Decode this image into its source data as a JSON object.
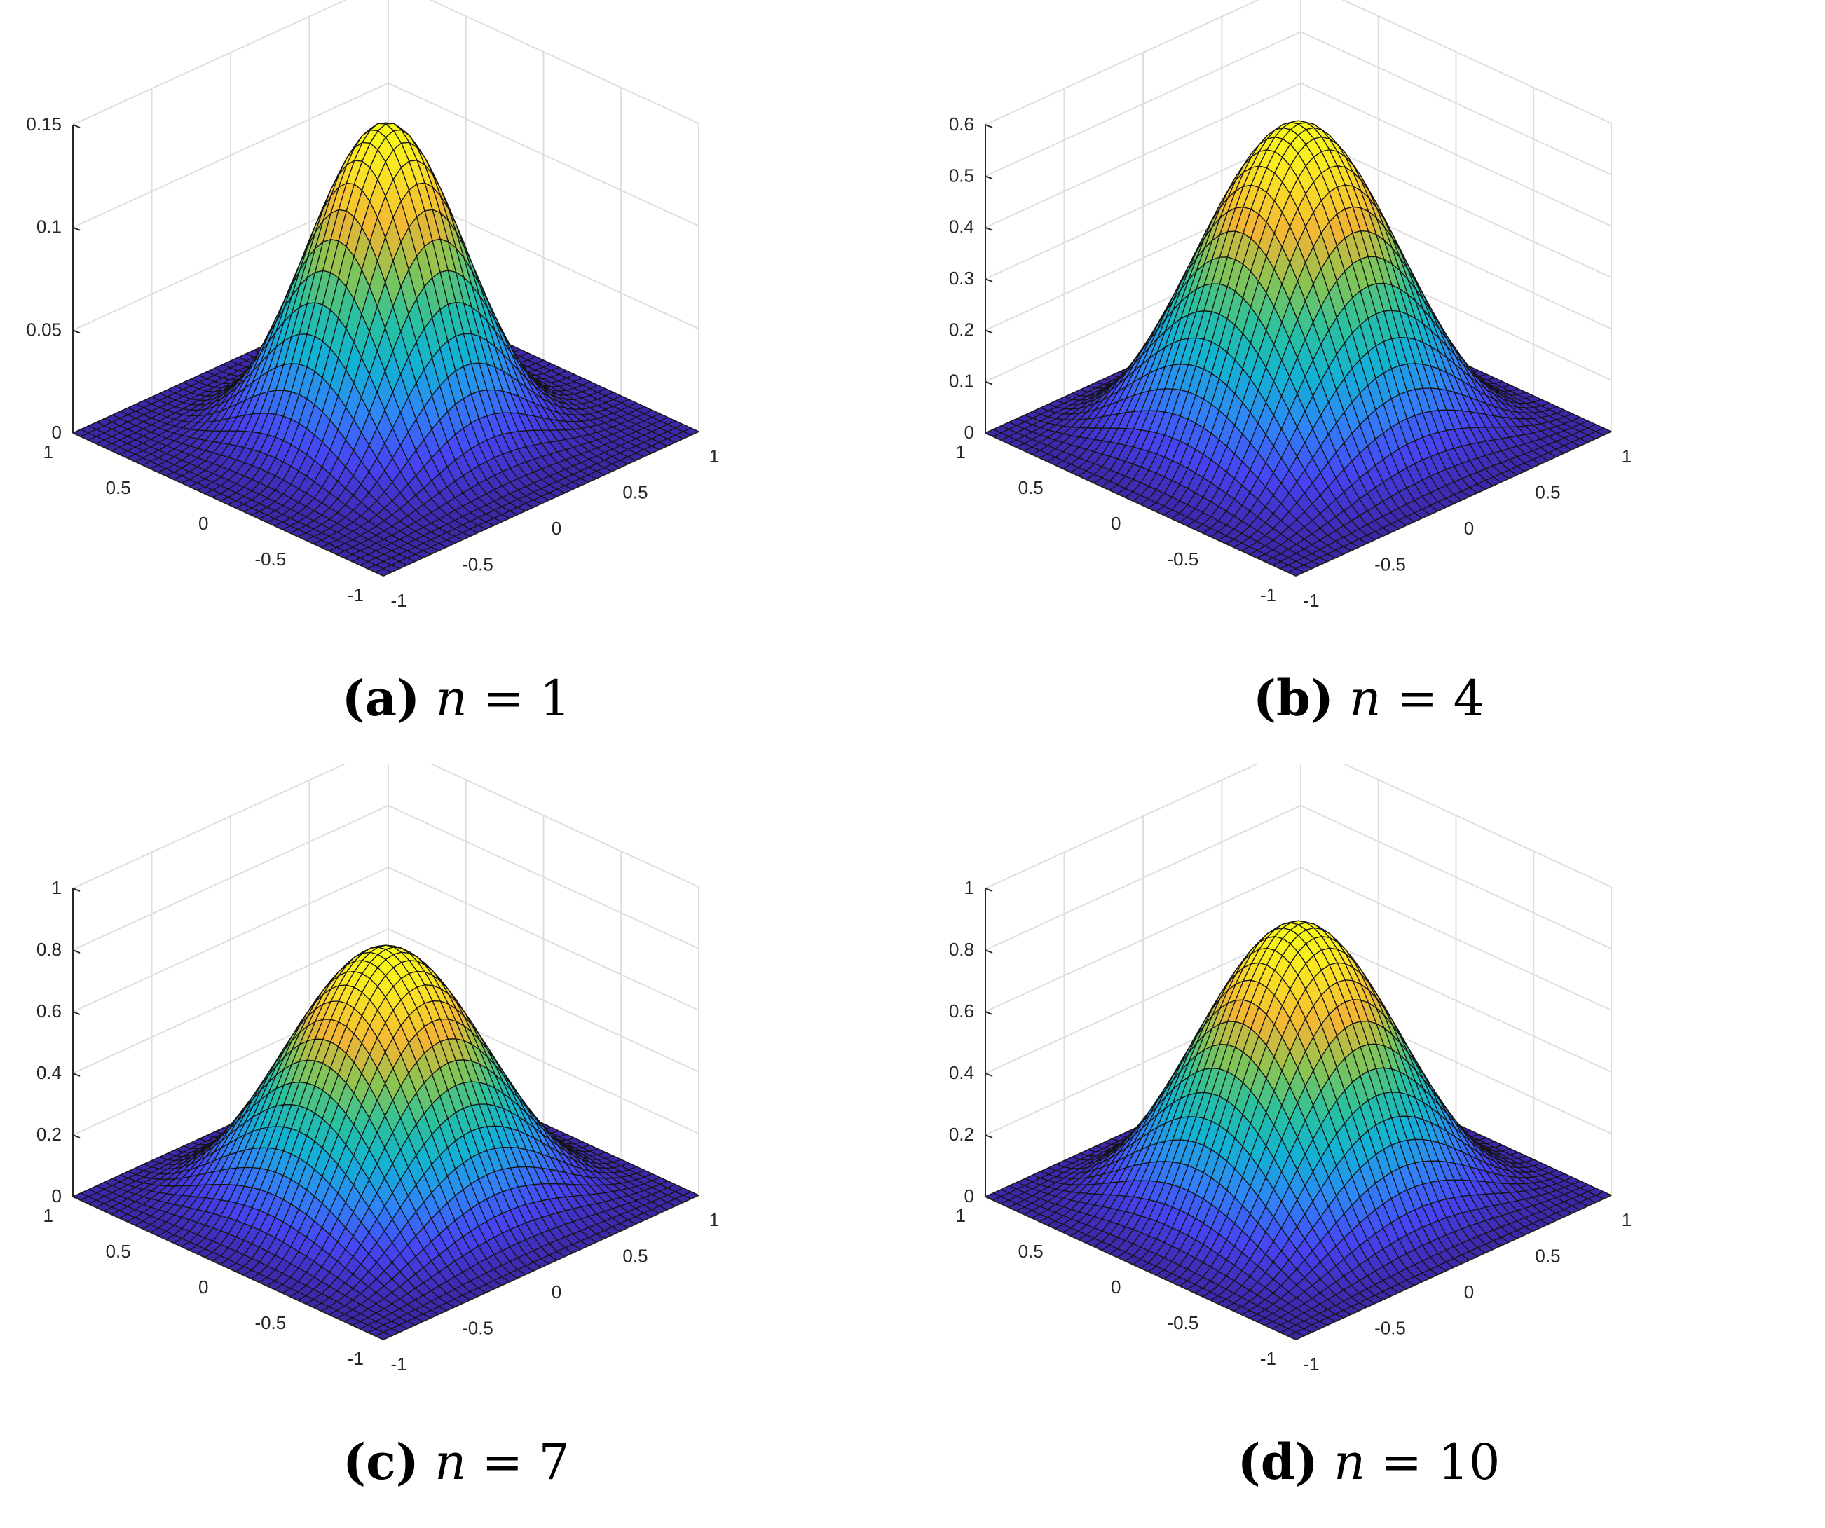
{
  "chart_data": [
    {
      "type": "surface",
      "caption": {
        "label": "(a)",
        "var": "n",
        "eq": "=",
        "value": "1"
      },
      "zlim": [
        0,
        0.15
      ],
      "zticks": [
        "0",
        "0.05",
        "0.1",
        "0.15"
      ],
      "xticks": [
        "-1",
        "-0.5",
        "0",
        "0.5",
        "1"
      ],
      "yticks": [
        "1",
        "0.5",
        "0",
        "-0.5",
        "-1"
      ],
      "peak": 0.15,
      "shape": 1.6,
      "grid": true,
      "colormap": [
        "#3e26a8",
        "#4745f5",
        "#2f86f7",
        "#12b2d3",
        "#2cc19d",
        "#8bc452",
        "#f1b535",
        "#fadf26",
        "#f9fb15"
      ]
    },
    {
      "type": "surface",
      "caption": {
        "label": "(b)",
        "var": "n",
        "eq": "=",
        "value": "4"
      },
      "zlim": [
        0,
        0.6
      ],
      "zticks": [
        "0",
        "0.1",
        "0.2",
        "0.3",
        "0.4",
        "0.5",
        "0.6"
      ],
      "xticks": [
        "-1",
        "-0.5",
        "0",
        "0.5",
        "1"
      ],
      "yticks": [
        "1",
        "0.5",
        "0",
        "-0.5",
        "-1"
      ],
      "peak": 0.6,
      "shape": 1.0,
      "grid": true,
      "colormap": [
        "#3e26a8",
        "#4745f5",
        "#2f86f7",
        "#12b2d3",
        "#2cc19d",
        "#8bc452",
        "#f1b535",
        "#fadf26",
        "#f9fb15"
      ]
    },
    {
      "type": "surface",
      "caption": {
        "label": "(c)",
        "var": "n",
        "eq": "=",
        "value": "7"
      },
      "zlim": [
        0,
        1
      ],
      "zticks": [
        "0",
        "0.2",
        "0.4",
        "0.6",
        "0.8",
        "1"
      ],
      "xticks": [
        "-1",
        "-0.5",
        "0",
        "0.5",
        "1"
      ],
      "yticks": [
        "1",
        "0.5",
        "0",
        "-0.5",
        "-1"
      ],
      "peak": 0.8,
      "shape": 1.0,
      "grid": true,
      "colormap": [
        "#3e26a8",
        "#4745f5",
        "#2f86f7",
        "#12b2d3",
        "#2cc19d",
        "#8bc452",
        "#f1b535",
        "#fadf26",
        "#f9fb15"
      ]
    },
    {
      "type": "surface",
      "caption": {
        "label": "(d)",
        "var": "n",
        "eq": "=",
        "value": "10"
      },
      "zlim": [
        0,
        1
      ],
      "zticks": [
        "0",
        "0.2",
        "0.4",
        "0.6",
        "0.8",
        "1"
      ],
      "xticks": [
        "-1",
        "-0.5",
        "0",
        "0.5",
        "1"
      ],
      "yticks": [
        "1",
        "0.5",
        "0",
        "-0.5",
        "-1"
      ],
      "peak": 0.88,
      "shape": 1.0,
      "grid": true,
      "colormap": [
        "#3e26a8",
        "#4745f5",
        "#2f86f7",
        "#12b2d3",
        "#2cc19d",
        "#8bc452",
        "#f1b535",
        "#fadf26",
        "#f9fb15"
      ]
    }
  ]
}
